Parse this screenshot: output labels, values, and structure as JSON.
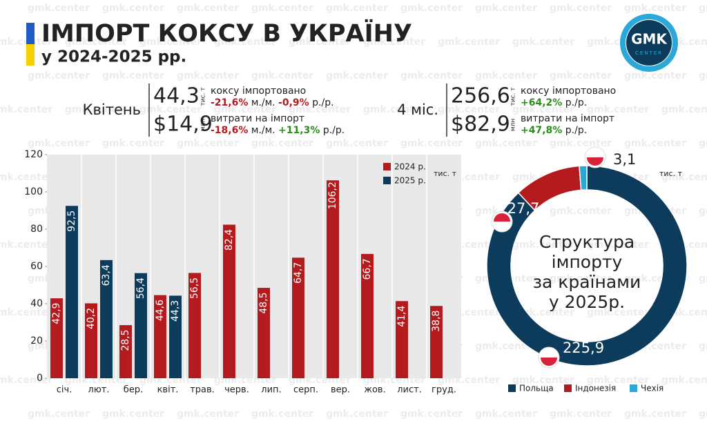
{
  "watermark": "gmk.center",
  "header": {
    "title": "ІМПОРТ КОКСУ В УКРАЇНУ",
    "subtitle": "у 2024-2025 рр."
  },
  "logo": {
    "text": "GMK",
    "sub": "CENTER"
  },
  "stats": [
    {
      "period": "Квітень",
      "volume": "44,3",
      "volume_unit": "тис. т",
      "volume_label": "коксу імпортовано",
      "volume_mom": "-21,6%",
      "mom": "м./м.",
      "volume_yoy": "-0,9%",
      "yoy": "р./р.",
      "cost": "$14,9",
      "cost_unit": "млн",
      "cost_label": "витрати на імпорт",
      "cost_mom": "-18,6%",
      "cost_yoy": "+11,3%"
    },
    {
      "period": "4 міс.",
      "volume": "256,6",
      "volume_unit": "тис. т",
      "volume_label": "коксу імпортовано",
      "volume_yoy": "+64,2%",
      "yoy": "р./р.",
      "cost": "$82,9",
      "cost_unit": "млн",
      "cost_label": "витрати на імпорт",
      "cost_yoy": "+47,8%"
    }
  ],
  "chart_data": [
    {
      "type": "bar",
      "unit": "тис. т",
      "categories": [
        "січ.",
        "лют.",
        "бер.",
        "квіт.",
        "трав.",
        "черв.",
        "лип.",
        "серп.",
        "вер.",
        "жов.",
        "лист.",
        "груд."
      ],
      "series": [
        {
          "name": "2024 р.",
          "color": "#b41b1e",
          "values": [
            42.9,
            40.2,
            28.5,
            44.6,
            56.5,
            82.4,
            48.5,
            64.7,
            106.2,
            66.7,
            41.4,
            38.8
          ],
          "value_labels": [
            "42,9",
            "40,2",
            "28,5",
            "44,6",
            "56,5",
            "82,4",
            "48,5",
            "64,7",
            "106,2",
            "66,7",
            "41,4",
            "38,8"
          ]
        },
        {
          "name": "2025 р.",
          "color": "#0d3b5c",
          "values": [
            92.5,
            63.4,
            56.4,
            44.3,
            null,
            null,
            null,
            null,
            null,
            null,
            null,
            null
          ],
          "value_labels": [
            "92,5",
            "63,4",
            "56,4",
            "44,3",
            null,
            null,
            null,
            null,
            null,
            null,
            null,
            null
          ]
        }
      ],
      "ylim": [
        0,
        120
      ],
      "yticks": [
        0,
        20,
        40,
        60,
        80,
        100,
        120
      ]
    },
    {
      "type": "pie",
      "unit": "тис. т",
      "center_text": [
        "Структура",
        "імпорту",
        "за країнами",
        "у 2025р."
      ],
      "categories": [
        "Польща",
        "Індонезія",
        "Чехія"
      ],
      "values": [
        225.9,
        27.7,
        3.1
      ],
      "value_labels": [
        "225,9",
        "27,7",
        "3,1"
      ],
      "colors": [
        "#0d3b5c",
        "#b41b1e",
        "#2aa8d8"
      ]
    }
  ]
}
